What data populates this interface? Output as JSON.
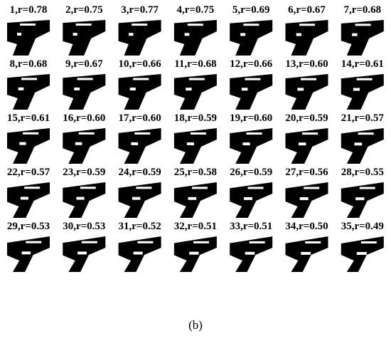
{
  "panels": [
    {
      "label": "1,r=0.78"
    },
    {
      "label": "2,r=0.75"
    },
    {
      "label": "3,r=0.77"
    },
    {
      "label": "4,r=0.75"
    },
    {
      "label": "5,r=0.69"
    },
    {
      "label": "6,r=0.67"
    },
    {
      "label": "7,r=0.68"
    },
    {
      "label": "8,r=0.68"
    },
    {
      "label": "9,r=0.67"
    },
    {
      "label": "10,r=0.66"
    },
    {
      "label": "11,r=0.68"
    },
    {
      "label": "12,r=0.66"
    },
    {
      "label": "13,r=0.60"
    },
    {
      "label": "14,r=0.61"
    },
    {
      "label": "15,r=0.61"
    },
    {
      "label": "16,r=0.60"
    },
    {
      "label": "17,r=0.60"
    },
    {
      "label": "18,r=0.59"
    },
    {
      "label": "19,r=0.60"
    },
    {
      "label": "20,r=0.59"
    },
    {
      "label": "21,r=0.57"
    },
    {
      "label": "22,r=0.57"
    },
    {
      "label": "23,r=0.59"
    },
    {
      "label": "24,r=0.59"
    },
    {
      "label": "25,r=0.58"
    },
    {
      "label": "26,r=0.59"
    },
    {
      "label": "27,r=0.56"
    },
    {
      "label": "28,r=0.55"
    },
    {
      "label": "29,r=0.53"
    },
    {
      "label": "30,r=0.53"
    },
    {
      "label": "31,r=0.52"
    },
    {
      "label": "32,r=0.51"
    },
    {
      "label": "33,r=0.51"
    },
    {
      "label": "34,r=0.50"
    },
    {
      "label": "35,r=0.49"
    }
  ],
  "caption": "(b)"
}
